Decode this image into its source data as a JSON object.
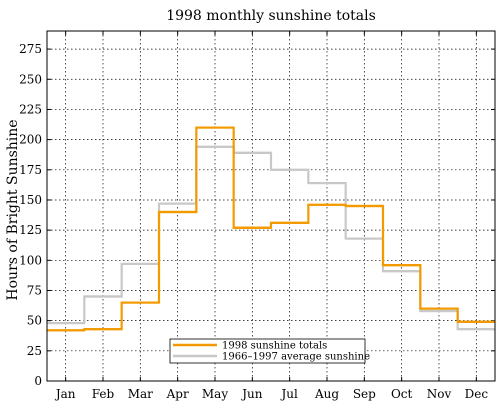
{
  "chart_data": {
    "type": "line",
    "step": true,
    "title": "1998 monthly sunshine totals",
    "xlabel": "",
    "ylabel": "Hours of Bright Sunshine",
    "categories": [
      "Jan",
      "Feb",
      "Mar",
      "Apr",
      "May",
      "Jun",
      "Jul",
      "Aug",
      "Sep",
      "Oct",
      "Nov",
      "Dec"
    ],
    "ylim": [
      0,
      290
    ],
    "yticks": [
      0,
      25,
      50,
      75,
      100,
      125,
      150,
      175,
      200,
      225,
      250,
      275
    ],
    "grid": true,
    "legend_position": "bottom-center",
    "series": [
      {
        "name": "1998 sunshine totals",
        "color": "#f39a00",
        "values": [
          42,
          43,
          65,
          140,
          210,
          127,
          131,
          146,
          145,
          96,
          60,
          49
        ]
      },
      {
        "name": "1966–1997 average sunshine",
        "color": "#c8c8c8",
        "values": [
          48,
          70,
          97,
          147,
          194,
          189,
          175,
          164,
          118,
          91,
          58,
          43
        ]
      }
    ]
  }
}
